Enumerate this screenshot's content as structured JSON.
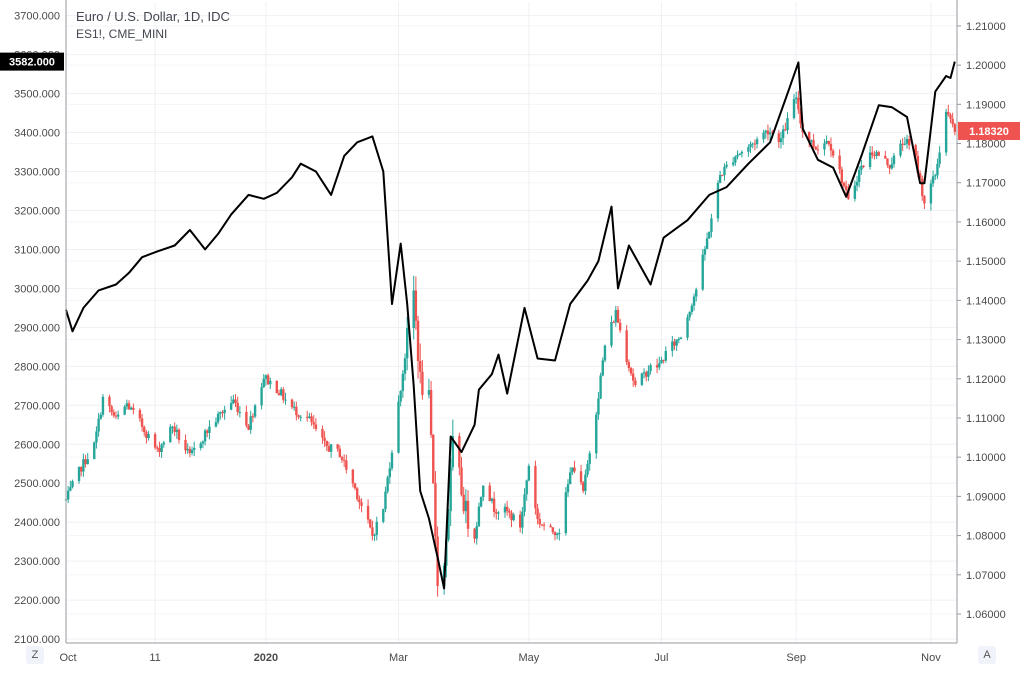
{
  "chart_data": {
    "type": "line",
    "title": "Euro / U.S. Dollar, 1D, IDC",
    "subtitle": "ES1!, CME_MINI",
    "left_axis": {
      "ticks": [
        "2100.000",
        "2200.000",
        "2300.000",
        "2400.000",
        "2500.000",
        "2600.000",
        "2700.000",
        "2800.000",
        "2900.000",
        "3000.000",
        "3100.000",
        "3200.000",
        "3300.000",
        "3400.000",
        "3500.000",
        "3600.000",
        "3700.000"
      ],
      "range": [
        2090,
        3735
      ],
      "current_label": "3582.000"
    },
    "right_axis": {
      "ticks": [
        "1.06000",
        "1.07000",
        "1.08000",
        "1.09000",
        "1.10000",
        "1.11000",
        "1.12000",
        "1.13000",
        "1.14000",
        "1.15000",
        "1.16000",
        "1.17000",
        "1.18000",
        "1.19000",
        "1.20000",
        "1.21000"
      ],
      "range": [
        1.0526,
        1.2161
      ],
      "current_label": "1.18320",
      "label_color": "#ef5350"
    },
    "x_axis": {
      "ticks": [
        "Oct",
        "11",
        "2020",
        "Mar",
        "May",
        "Jul",
        "Sep",
        "Nov"
      ],
      "bold": [
        "2020"
      ],
      "range": [
        "2019-10-01",
        "2020-11-14"
      ]
    },
    "x_tick_dates": [
      "2019-10-01",
      "2019-11-11",
      "2020-01-01",
      "2020-03-02",
      "2020-05-01",
      "2020-07-01",
      "2020-09-01",
      "2020-11-02"
    ],
    "series": [
      {
        "name": "ES1!, CME_MINI",
        "kind": "line",
        "axis": "left",
        "color": "#000000",
        "points": [
          [
            "2019-10-01",
            2945
          ],
          [
            "2019-10-04",
            2890
          ],
          [
            "2019-10-09",
            2950
          ],
          [
            "2019-10-16",
            2995
          ],
          [
            "2019-10-24",
            3010
          ],
          [
            "2019-10-30",
            3040
          ],
          [
            "2019-11-05",
            3080
          ],
          [
            "2019-11-12",
            3095
          ],
          [
            "2019-11-20",
            3110
          ],
          [
            "2019-11-27",
            3150
          ],
          [
            "2019-12-04",
            3100
          ],
          [
            "2019-12-10",
            3140
          ],
          [
            "2019-12-16",
            3190
          ],
          [
            "2019-12-24",
            3240
          ],
          [
            "2019-12-31",
            3230
          ],
          [
            "2020-01-06",
            3245
          ],
          [
            "2020-01-13",
            3285
          ],
          [
            "2020-01-17",
            3320
          ],
          [
            "2020-01-24",
            3300
          ],
          [
            "2020-01-31",
            3240
          ],
          [
            "2020-02-06",
            3340
          ],
          [
            "2020-02-12",
            3375
          ],
          [
            "2020-02-19",
            3390
          ],
          [
            "2020-02-24",
            3300
          ],
          [
            "2020-02-28",
            2960
          ],
          [
            "2020-03-03",
            3115
          ],
          [
            "2020-03-06",
            2960
          ],
          [
            "2020-03-09",
            2750
          ],
          [
            "2020-03-12",
            2480
          ],
          [
            "2020-03-16",
            2410
          ],
          [
            "2020-03-20",
            2310
          ],
          [
            "2020-03-23",
            2230
          ],
          [
            "2020-03-26",
            2620
          ],
          [
            "2020-03-31",
            2580
          ],
          [
            "2020-04-06",
            2650
          ],
          [
            "2020-04-08",
            2740
          ],
          [
            "2020-04-14",
            2780
          ],
          [
            "2020-04-17",
            2830
          ],
          [
            "2020-04-21",
            2730
          ],
          [
            "2020-04-29",
            2950
          ],
          [
            "2020-05-05",
            2820
          ],
          [
            "2020-05-13",
            2815
          ],
          [
            "2020-05-20",
            2960
          ],
          [
            "2020-05-28",
            3020
          ],
          [
            "2020-06-02",
            3070
          ],
          [
            "2020-06-08",
            3210
          ],
          [
            "2020-06-11",
            3000
          ],
          [
            "2020-06-16",
            3110
          ],
          [
            "2020-06-26",
            3010
          ],
          [
            "2020-07-02",
            3130
          ],
          [
            "2020-07-13",
            3175
          ],
          [
            "2020-07-23",
            3240
          ],
          [
            "2020-07-31",
            3260
          ],
          [
            "2020-08-10",
            3320
          ],
          [
            "2020-08-20",
            3375
          ],
          [
            "2020-08-28",
            3500
          ],
          [
            "2020-09-02",
            3580
          ],
          [
            "2020-09-04",
            3410
          ],
          [
            "2020-09-11",
            3330
          ],
          [
            "2020-09-18",
            3310
          ],
          [
            "2020-09-24",
            3235
          ],
          [
            "2020-10-01",
            3340
          ],
          [
            "2020-10-09",
            3470
          ],
          [
            "2020-10-15",
            3465
          ],
          [
            "2020-10-22",
            3440
          ],
          [
            "2020-10-28",
            3270
          ],
          [
            "2020-10-30",
            3270
          ],
          [
            "2020-11-04",
            3505
          ],
          [
            "2020-11-09",
            3545
          ],
          [
            "2020-11-11",
            3540
          ],
          [
            "2020-11-13",
            3582
          ]
        ]
      },
      {
        "name": "Euro / U.S. Dollar",
        "kind": "candlestick",
        "axis": "right",
        "up_color": "#26a69a",
        "down_color": "#ef5350",
        "path": [
          [
            "2019-10-01",
            1.089
          ],
          [
            "2019-10-08",
            1.0975
          ],
          [
            "2019-10-14",
            1.103
          ],
          [
            "2019-10-18",
            1.115
          ],
          [
            "2019-10-24",
            1.1095
          ],
          [
            "2019-10-29",
            1.1135
          ],
          [
            "2019-11-05",
            1.108
          ],
          [
            "2019-11-12",
            1.1015
          ],
          [
            "2019-11-19",
            1.108
          ],
          [
            "2019-11-27",
            1.1
          ],
          [
            "2019-12-04",
            1.106
          ],
          [
            "2019-12-11",
            1.111
          ],
          [
            "2019-12-17",
            1.1145
          ],
          [
            "2019-12-24",
            1.108
          ],
          [
            "2019-12-31",
            1.1205
          ],
          [
            "2020-01-06",
            1.1175
          ],
          [
            "2020-01-13",
            1.1125
          ],
          [
            "2020-01-21",
            1.1095
          ],
          [
            "2020-01-28",
            1.103
          ],
          [
            "2020-02-04",
            1.101
          ],
          [
            "2020-02-11",
            1.092
          ],
          [
            "2020-02-19",
            1.08
          ],
          [
            "2020-02-24",
            1.087
          ],
          [
            "2020-03-02",
            1.1135
          ],
          [
            "2020-03-06",
            1.13
          ],
          [
            "2020-03-09",
            1.142
          ],
          [
            "2020-03-12",
            1.1195
          ],
          [
            "2020-03-16",
            1.114
          ],
          [
            "2020-03-20",
            1.0695
          ],
          [
            "2020-03-23",
            1.072
          ],
          [
            "2020-03-27",
            1.103
          ],
          [
            "2020-04-02",
            1.086
          ],
          [
            "2020-04-06",
            1.08
          ],
          [
            "2020-04-10",
            1.094
          ],
          [
            "2020-04-15",
            1.087
          ],
          [
            "2020-04-21",
            1.086
          ],
          [
            "2020-04-27",
            1.0825
          ],
          [
            "2020-05-01",
            1.098
          ],
          [
            "2020-05-05",
            1.084
          ],
          [
            "2020-05-11",
            1.081
          ],
          [
            "2020-05-15",
            1.0815
          ],
          [
            "2020-05-21",
            1.0985
          ],
          [
            "2020-05-26",
            1.091
          ],
          [
            "2020-06-01",
            1.112
          ],
          [
            "2020-06-05",
            1.1285
          ],
          [
            "2020-06-10",
            1.137
          ],
          [
            "2020-06-15",
            1.1255
          ],
          [
            "2020-06-19",
            1.118
          ],
          [
            "2020-06-25",
            1.1225
          ],
          [
            "2020-06-30",
            1.1235
          ],
          [
            "2020-07-03",
            1.1265
          ],
          [
            "2020-07-10",
            1.131
          ],
          [
            "2020-07-17",
            1.143
          ],
          [
            "2020-07-22",
            1.1555
          ],
          [
            "2020-07-28",
            1.172
          ],
          [
            "2020-08-04",
            1.177
          ],
          [
            "2020-08-10",
            1.179
          ],
          [
            "2020-08-19",
            1.1835
          ],
          [
            "2020-08-25",
            1.181
          ],
          [
            "2020-09-01",
            1.192
          ],
          [
            "2020-09-04",
            1.183
          ],
          [
            "2020-09-10",
            1.179
          ],
          [
            "2020-09-16",
            1.181
          ],
          [
            "2020-09-22",
            1.171
          ],
          [
            "2020-09-25",
            1.165
          ],
          [
            "2020-09-30",
            1.173
          ],
          [
            "2020-10-06",
            1.178
          ],
          [
            "2020-10-09",
            1.177
          ],
          [
            "2020-10-14",
            1.1745
          ],
          [
            "2020-10-21",
            1.181
          ],
          [
            "2020-10-26",
            1.176
          ],
          [
            "2020-10-30",
            1.165
          ],
          [
            "2020-11-04",
            1.172
          ],
          [
            "2020-11-09",
            1.188
          ],
          [
            "2020-11-13",
            1.1832
          ]
        ]
      }
    ],
    "grid": true,
    "legend": "top-left",
    "x_axis_buttons": [
      "Z",
      "A"
    ]
  }
}
